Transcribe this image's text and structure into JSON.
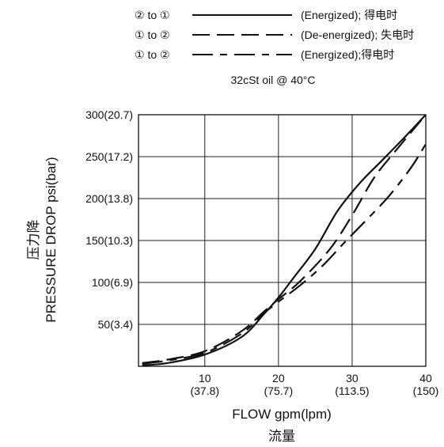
{
  "chart_data": {
    "type": "line",
    "subtitle": "32cSt  oil @ 40°C",
    "xlabel": "FLOW gpm(lpm)",
    "xlabel_cn": "流量",
    "ylabel": "PRESSURE DROP psi(bar)",
    "ylabel_cn": "压力降",
    "xlim": [
      1,
      40
    ],
    "ylim": [
      0,
      300
    ],
    "x_ticks": [
      {
        "value": 10,
        "label": "10",
        "sublabel": "(37.8)"
      },
      {
        "value": 20,
        "label": "20",
        "sublabel": "(75.7)"
      },
      {
        "value": 30,
        "label": "30",
        "sublabel": "(113.5)"
      },
      {
        "value": 40,
        "label": "40",
        "sublabel": "(150)"
      }
    ],
    "y_ticks": [
      {
        "value": 50,
        "label": "50(3.4)"
      },
      {
        "value": 100,
        "label": "100(6.9)"
      },
      {
        "value": 150,
        "label": "150(10.3)"
      },
      {
        "value": 200,
        "label": "200(13.8)"
      },
      {
        "value": 250,
        "label": "250(17.2)"
      },
      {
        "value": 300,
        "label": "300(20.7)"
      }
    ],
    "grid": true,
    "legend_position": "top",
    "series": [
      {
        "name": "② to ① (Energized); 得电时",
        "style": "solid",
        "x": [
          1.5,
          5,
          10,
          15,
          18,
          20,
          22,
          25,
          28,
          31,
          34,
          37,
          40
        ],
        "y": [
          1,
          4,
          14,
          35,
          62,
          82,
          105,
          140,
          185,
          218,
          245,
          272,
          300
        ]
      },
      {
        "name": "① to ② (De-energized); 失电时",
        "style": "dashed",
        "x": [
          1.5,
          5,
          10,
          15,
          18,
          20,
          23,
          27,
          30,
          33,
          36,
          40
        ],
        "y": [
          4,
          8,
          18,
          42,
          65,
          80,
          102,
          140,
          180,
          225,
          258,
          300
        ]
      },
      {
        "name": "① to ② (Energized);得电时",
        "style": "dashdot",
        "x": [
          1.5,
          5,
          10,
          15,
          18,
          20,
          23,
          26,
          29,
          32,
          35,
          38,
          40
        ],
        "y": [
          3,
          7,
          16,
          39,
          63,
          77,
          97,
          120,
          148,
          175,
          203,
          237,
          265
        ]
      }
    ]
  }
}
